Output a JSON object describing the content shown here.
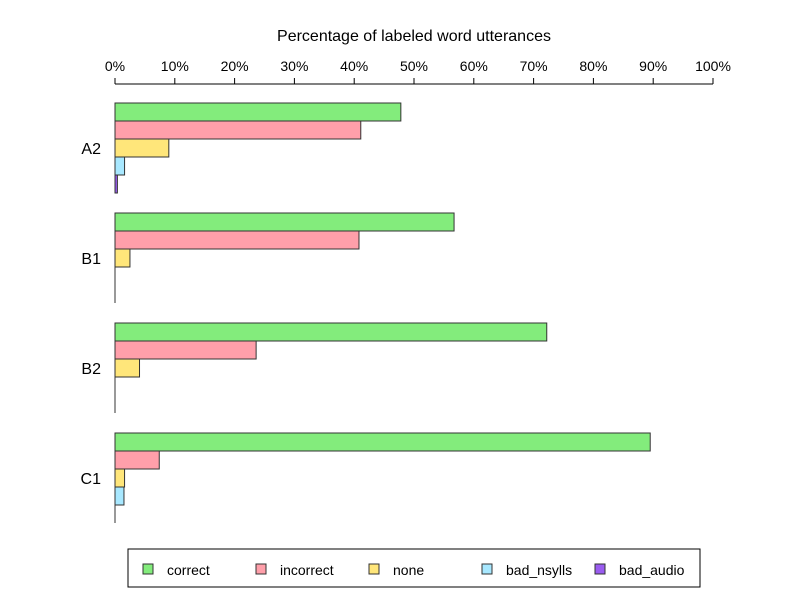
{
  "chart_data": {
    "type": "bar",
    "orientation": "horizontal",
    "title": "Percentage of labeled word utterances",
    "xlim": [
      0,
      100
    ],
    "x_ticks": [
      "0%",
      "10%",
      "20%",
      "30%",
      "40%",
      "50%",
      "60%",
      "70%",
      "80%",
      "90%",
      "100%"
    ],
    "x_tick_values": [
      0,
      10,
      20,
      30,
      40,
      50,
      60,
      70,
      80,
      90,
      100
    ],
    "axis_position": "top",
    "legend_position": "bottom",
    "categories": [
      "A2",
      "B1",
      "B2",
      "C1"
    ],
    "series": [
      {
        "name": "correct",
        "color": "#83ec7c",
        "values": [
          47.8,
          56.7,
          72.2,
          89.5
        ]
      },
      {
        "name": "incorrect",
        "color": "#ff9faa",
        "values": [
          41.1,
          40.8,
          23.6,
          7.4
        ]
      },
      {
        "name": "none",
        "color": "#ffe67a",
        "values": [
          9.0,
          2.5,
          4.1,
          1.6
        ]
      },
      {
        "name": "bad_nsylls",
        "color": "#a8e8ff",
        "values": [
          1.6,
          0.0,
          0.0,
          1.5
        ]
      },
      {
        "name": "bad_audio",
        "color": "#9a5cf0",
        "values": [
          0.4,
          0.0,
          0.0,
          0.0
        ]
      }
    ]
  }
}
